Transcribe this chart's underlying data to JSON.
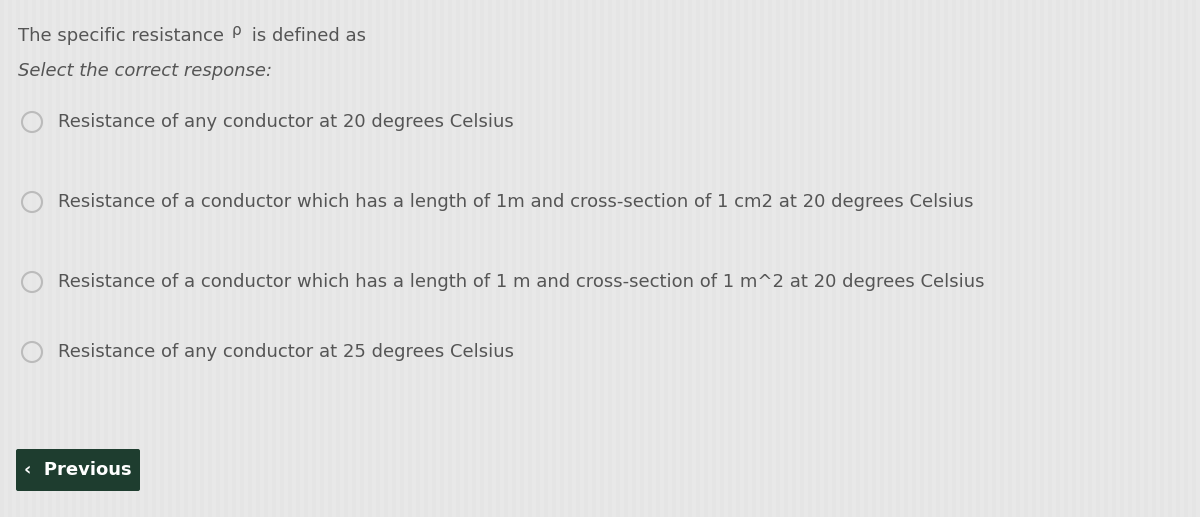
{
  "title_main": "The specific resistance ",
  "title_rho": "ρ",
  "title_rest": " is defined as",
  "subtitle": "Select the correct response:",
  "options": [
    "Resistance of any conductor at 20 degrees Celsius",
    "Resistance of a conductor which has a length of 1m and cross-section of 1 cm2 at 20 degrees Celsius",
    "Resistance of a conductor which has a length of 1 m and cross-section of 1 m^2 at 20 degrees Celsius",
    "Resistance of any conductor at 25 degrees Celsius"
  ],
  "background_color": "#e8e8e8",
  "stripe_color": "#f0f0f0",
  "title_color": "#555555",
  "subtitle_color": "#555555",
  "option_color": "#555555",
  "radio_edge_color": "#bbbbbb",
  "radio_inner_color": "#cccccc",
  "button_bg": "#1e3d2f",
  "button_text_color": "#ffffff",
  "title_fontsize": 13,
  "subtitle_fontsize": 13,
  "option_fontsize": 13,
  "button_fontsize": 13
}
